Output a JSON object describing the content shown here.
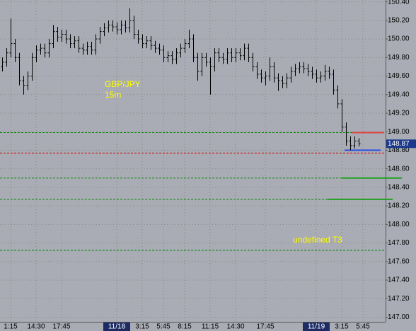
{
  "chart_data": {
    "type": "ohlc",
    "categories": [
      null,
      null,
      "1:15",
      null,
      null,
      null,
      null,
      null,
      "14:30",
      null,
      null,
      null,
      null,
      null,
      "17:45",
      null,
      null,
      null,
      null,
      null,
      null,
      null,
      null,
      null,
      null,
      null,
      null,
      "11/18",
      null,
      null,
      null,
      null,
      null,
      "3:15",
      null,
      null,
      null,
      null,
      "5:45",
      null,
      null,
      null,
      null,
      "8:15",
      null,
      null,
      null,
      null,
      null,
      "11:15",
      null,
      null,
      null,
      null,
      null,
      "14:30",
      null,
      null,
      null,
      null,
      null,
      null,
      "17:45",
      null,
      null,
      null,
      null,
      null,
      null,
      null,
      null,
      null,
      null,
      null,
      "11/19",
      null,
      null,
      null,
      null,
      null,
      "3:15",
      null,
      null,
      null,
      null,
      "5:45",
      null,
      null,
      null,
      null,
      null
    ],
    "open": [
      149.7,
      149.75,
      149.85,
      149.95,
      149.8,
      149.55,
      149.5,
      149.6,
      149.8,
      149.88,
      149.9,
      149.85,
      149.95,
      150.08,
      150.02,
      150.05,
      150.0,
      149.95,
      149.98,
      149.9,
      149.88,
      149.92,
      149.88,
      150.0,
      150.08,
      150.12,
      150.15,
      150.13,
      150.1,
      150.15,
      150.12,
      150.2,
      150.05,
      150.0,
      149.95,
      149.98,
      149.93,
      149.9,
      149.88,
      149.8,
      149.82,
      149.78,
      149.85,
      149.9,
      149.95,
      150.0,
      149.8,
      149.65,
      149.8,
      149.75,
      149.7,
      149.85,
      149.8,
      149.78,
      149.85,
      149.8,
      149.85,
      149.82,
      149.9,
      149.8,
      149.7,
      149.62,
      149.58,
      149.6,
      149.7,
      149.58,
      149.55,
      149.52,
      149.58,
      149.65,
      149.68,
      149.7,
      149.68,
      149.65,
      149.62,
      149.58,
      149.6,
      149.65,
      149.62,
      149.45,
      149.3,
      149.05,
      148.9,
      148.85,
      148.9,
      null,
      null,
      null,
      null,
      null,
      null
    ],
    "high": [
      149.8,
      149.9,
      150.22,
      150.0,
      149.85,
      149.6,
      149.65,
      149.85,
      149.93,
      149.95,
      149.95,
      150.0,
      150.15,
      150.13,
      150.1,
      150.1,
      150.05,
      150.03,
      150.03,
      149.95,
      149.97,
      149.97,
      150.05,
      150.13,
      150.17,
      150.2,
      150.2,
      150.18,
      150.2,
      150.2,
      150.33,
      150.25,
      150.1,
      150.05,
      150.03,
      150.03,
      149.98,
      149.95,
      149.93,
      149.87,
      149.87,
      149.9,
      149.95,
      150.0,
      150.1,
      150.05,
      149.85,
      149.85,
      149.85,
      149.8,
      149.9,
      149.9,
      149.85,
      149.9,
      149.9,
      149.9,
      149.9,
      149.95,
      149.95,
      149.85,
      149.75,
      149.67,
      149.65,
      149.8,
      149.75,
      149.63,
      149.6,
      149.63,
      149.7,
      149.73,
      149.75,
      149.75,
      149.73,
      149.7,
      149.67,
      149.65,
      149.72,
      149.7,
      149.67,
      149.5,
      149.35,
      149.1,
      148.95,
      148.95,
      148.93,
      null,
      null,
      null,
      null,
      null,
      null
    ],
    "low": [
      149.65,
      149.7,
      149.8,
      149.75,
      149.5,
      149.4,
      149.45,
      149.55,
      149.75,
      149.83,
      149.8,
      149.8,
      149.9,
      149.97,
      149.97,
      149.95,
      149.9,
      149.9,
      149.85,
      149.83,
      149.83,
      149.83,
      149.83,
      149.95,
      150.03,
      150.07,
      150.08,
      150.05,
      150.05,
      150.07,
      150.07,
      150.0,
      149.95,
      149.9,
      149.9,
      149.88,
      149.85,
      149.83,
      149.75,
      149.75,
      149.73,
      149.73,
      149.8,
      149.85,
      149.9,
      149.75,
      149.55,
      149.6,
      149.7,
      149.4,
      149.65,
      149.75,
      149.73,
      149.73,
      149.75,
      149.75,
      149.77,
      149.77,
      149.75,
      149.65,
      149.57,
      149.53,
      149.5,
      149.55,
      149.53,
      149.44,
      149.47,
      149.47,
      149.53,
      149.6,
      149.63,
      149.63,
      149.6,
      149.57,
      149.53,
      149.53,
      149.55,
      149.57,
      149.4,
      149.25,
      149.0,
      148.85,
      148.8,
      148.82,
      148.84,
      null,
      null,
      null,
      null,
      null,
      null
    ],
    "close": [
      149.75,
      149.85,
      149.95,
      149.8,
      149.55,
      149.5,
      149.6,
      149.8,
      149.88,
      149.9,
      149.85,
      149.95,
      150.08,
      150.02,
      150.05,
      150.0,
      149.95,
      149.98,
      149.9,
      149.88,
      149.92,
      149.88,
      150.0,
      150.08,
      150.12,
      150.15,
      150.13,
      150.1,
      150.15,
      150.12,
      150.2,
      150.05,
      150.0,
      149.95,
      149.98,
      149.93,
      149.9,
      149.88,
      149.8,
      149.82,
      149.78,
      149.85,
      149.9,
      149.95,
      150.0,
      149.8,
      149.65,
      149.8,
      149.75,
      149.7,
      149.85,
      149.8,
      149.78,
      149.85,
      149.8,
      149.85,
      149.82,
      149.9,
      149.8,
      149.7,
      149.62,
      149.58,
      149.6,
      149.7,
      149.58,
      149.55,
      149.52,
      149.58,
      149.65,
      149.68,
      149.7,
      149.68,
      149.65,
      149.62,
      149.58,
      149.6,
      149.65,
      149.62,
      149.45,
      149.3,
      149.05,
      148.9,
      148.85,
      148.9,
      148.87,
      null,
      null,
      null,
      null,
      null,
      null
    ],
    "color": "#000000",
    "ylim": [
      146.95,
      150.42
    ],
    "yticks": [
      {
        "value": 147.0,
        "label": "147.00"
      },
      {
        "value": 147.2,
        "label": "147.20"
      },
      {
        "value": 147.4,
        "label": "147.40"
      },
      {
        "value": 147.6,
        "label": "147.60"
      },
      {
        "value": 147.8,
        "label": "147.80"
      },
      {
        "value": 148.0,
        "label": "148.00"
      },
      {
        "value": 148.2,
        "label": "148.20"
      },
      {
        "value": 148.4,
        "label": "148.40"
      },
      {
        "value": 148.6,
        "label": "148.60"
      },
      {
        "value": 148.8,
        "label": "148.80"
      },
      {
        "value": 149.0,
        "label": "149.00"
      },
      {
        "value": 149.2,
        "label": "149.20"
      },
      {
        "value": 149.4,
        "label": "149.40"
      },
      {
        "value": 149.6,
        "label": "149.60"
      },
      {
        "value": 149.8,
        "label": "149.80"
      },
      {
        "value": 150.0,
        "label": "150.00"
      },
      {
        "value": 150.2,
        "label": "150.20"
      },
      {
        "value": 150.4,
        "label": "150.40"
      }
    ],
    "grid": true,
    "last_price": {
      "value": 148.87,
      "label": "148.87"
    },
    "levels": [
      {
        "value": 148.99,
        "color": "#008800"
      },
      {
        "value": 148.77,
        "color": "#cc0000"
      },
      {
        "value": 148.5,
        "color": "#008800"
      },
      {
        "value": 148.27,
        "color": "#008800"
      },
      {
        "value": 147.72,
        "color": "#008800"
      }
    ],
    "segments": [
      {
        "value": 148.99,
        "color": "#e04040"
      },
      {
        "value": 148.8,
        "color": "#3050e0"
      },
      {
        "value": 148.5,
        "color": "#20a020"
      },
      {
        "value": 148.27,
        "color": "#20a020"
      }
    ],
    "annotations": [
      {
        "text": "GBP/JPY"
      },
      {
        "text": "15m"
      },
      {
        "text": "undefined T3"
      }
    ]
  }
}
